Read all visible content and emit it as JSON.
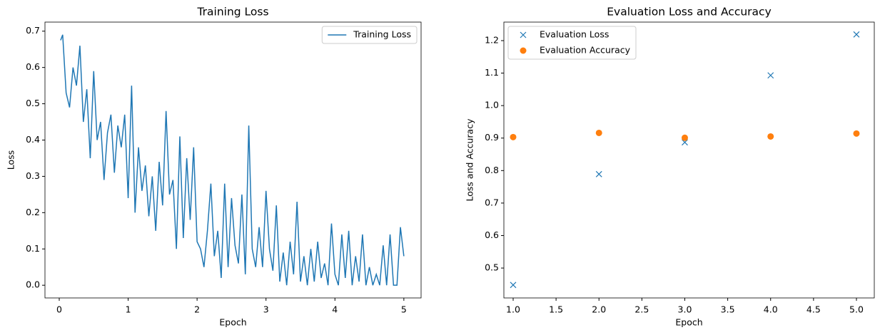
{
  "chart_data": [
    {
      "type": "line",
      "title": "Training Loss",
      "xlabel": "Epoch",
      "ylabel": "Loss",
      "x": [
        0.02,
        0.05,
        0.1,
        0.15,
        0.2,
        0.25,
        0.3,
        0.35,
        0.4,
        0.45,
        0.5,
        0.55,
        0.6,
        0.65,
        0.7,
        0.75,
        0.8,
        0.85,
        0.9,
        0.95,
        1.0,
        1.05,
        1.1,
        1.15,
        1.2,
        1.25,
        1.3,
        1.35,
        1.4,
        1.45,
        1.5,
        1.55,
        1.6,
        1.65,
        1.7,
        1.75,
        1.8,
        1.85,
        1.9,
        1.95,
        2.0,
        2.05,
        2.1,
        2.15,
        2.2,
        2.25,
        2.3,
        2.35,
        2.4,
        2.45,
        2.5,
        2.55,
        2.6,
        2.65,
        2.7,
        2.75,
        2.8,
        2.85,
        2.9,
        2.95,
        3.0,
        3.05,
        3.1,
        3.15,
        3.2,
        3.25,
        3.3,
        3.35,
        3.4,
        3.45,
        3.5,
        3.55,
        3.6,
        3.65,
        3.7,
        3.75,
        3.8,
        3.85,
        3.9,
        3.95,
        4.0,
        4.05,
        4.1,
        4.15,
        4.2,
        4.25,
        4.3,
        4.35,
        4.4,
        4.45,
        4.5,
        4.55,
        4.6,
        4.65,
        4.7,
        4.75,
        4.8,
        4.85,
        4.9,
        4.95,
        5.0
      ],
      "series": [
        {
          "name": "Training Loss",
          "color": "#1f77b4",
          "values": [
            0.675,
            0.69,
            0.53,
            0.49,
            0.6,
            0.55,
            0.66,
            0.45,
            0.54,
            0.35,
            0.59,
            0.4,
            0.45,
            0.29,
            0.42,
            0.47,
            0.31,
            0.44,
            0.38,
            0.47,
            0.24,
            0.55,
            0.2,
            0.38,
            0.26,
            0.33,
            0.19,
            0.3,
            0.15,
            0.34,
            0.22,
            0.48,
            0.25,
            0.29,
            0.1,
            0.41,
            0.13,
            0.35,
            0.18,
            0.38,
            0.12,
            0.1,
            0.05,
            0.15,
            0.28,
            0.08,
            0.15,
            0.02,
            0.28,
            0.05,
            0.24,
            0.11,
            0.06,
            0.25,
            0.03,
            0.44,
            0.1,
            0.05,
            0.16,
            0.05,
            0.26,
            0.1,
            0.04,
            0.22,
            0.01,
            0.09,
            0.0,
            0.12,
            0.03,
            0.23,
            0.01,
            0.08,
            0.0,
            0.1,
            0.01,
            0.12,
            0.02,
            0.06,
            0.0,
            0.17,
            0.03,
            0.0,
            0.14,
            0.02,
            0.15,
            0.0,
            0.08,
            0.01,
            0.14,
            0.0,
            0.05,
            0.0,
            0.03,
            0.0,
            0.11,
            0.0,
            0.14,
            0.0,
            0.0,
            0.16,
            0.08
          ]
        }
      ],
      "xlim": [
        -0.207,
        5.25
      ],
      "ylim": [
        -0.035,
        0.725
      ],
      "xticks": [
        0,
        1,
        2,
        3,
        4,
        5
      ],
      "yticks": [
        {
          "value": 0,
          "label": "0.0"
        },
        0.1,
        0.2,
        0.3,
        0.4,
        0.5,
        0.6,
        0.7
      ],
      "legend": "upper right"
    },
    {
      "type": "scatter",
      "title": "Evaluation Loss and Accuracy",
      "xlabel": "Epoch",
      "ylabel": "Loss and Accuracy",
      "x": [
        1,
        2,
        3,
        4,
        5
      ],
      "series": [
        {
          "name": "Evaluation Loss",
          "color": "#1f77b4",
          "marker": "x",
          "values": [
            0.448,
            0.789,
            0.887,
            1.093,
            1.219
          ]
        },
        {
          "name": "Evaluation Accuracy",
          "color": "#ff7f0e",
          "marker": "o",
          "values": [
            0.903,
            0.916,
            0.901,
            0.905,
            0.914
          ]
        }
      ],
      "xlim": [
        0.892,
        5.208
      ],
      "ylim": [
        0.408,
        1.257
      ],
      "xticks": [
        {
          "value": 1,
          "label": "1.0"
        },
        1.5,
        {
          "value": 2,
          "label": "2.0"
        },
        2.5,
        {
          "value": 3,
          "label": "3.0"
        },
        3.5,
        {
          "value": 4,
          "label": "4.0"
        },
        4.5,
        {
          "value": 5,
          "label": "5.0"
        }
      ],
      "yticks": [
        0.5,
        0.6,
        0.7,
        0.8,
        0.9,
        {
          "value": 1,
          "label": "1.0"
        },
        1.1,
        1.2
      ],
      "legend": "upper left"
    }
  ]
}
